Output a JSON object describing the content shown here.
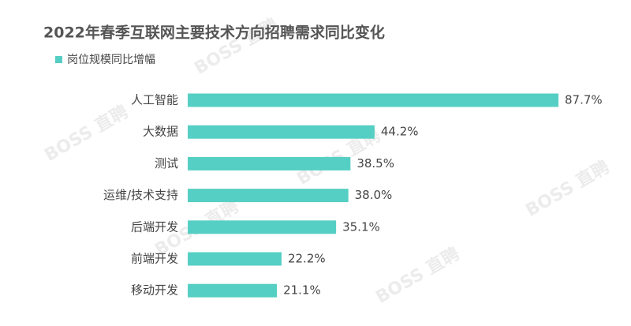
{
  "chart_data": {
    "type": "bar",
    "orientation": "horizontal",
    "title": "2022年春季互联网主要技术方向招聘需求同比变化",
    "watermark": "BOSS 直聘",
    "categories": [
      "人工智能",
      "大数据",
      "测试",
      "运维/技术支持",
      "后端开发",
      "前端开发",
      "移动开发"
    ],
    "series": [
      {
        "name": "岗位规模同比增幅",
        "color": "#55cfc3",
        "values": [
          87.7,
          44.2,
          38.5,
          38.0,
          35.1,
          22.2,
          21.1
        ],
        "value_labels": [
          "87.7%",
          "44.2%",
          "38.5%",
          "38.0%",
          "35.1%",
          "22.2%",
          "21.1%"
        ]
      }
    ]
  }
}
